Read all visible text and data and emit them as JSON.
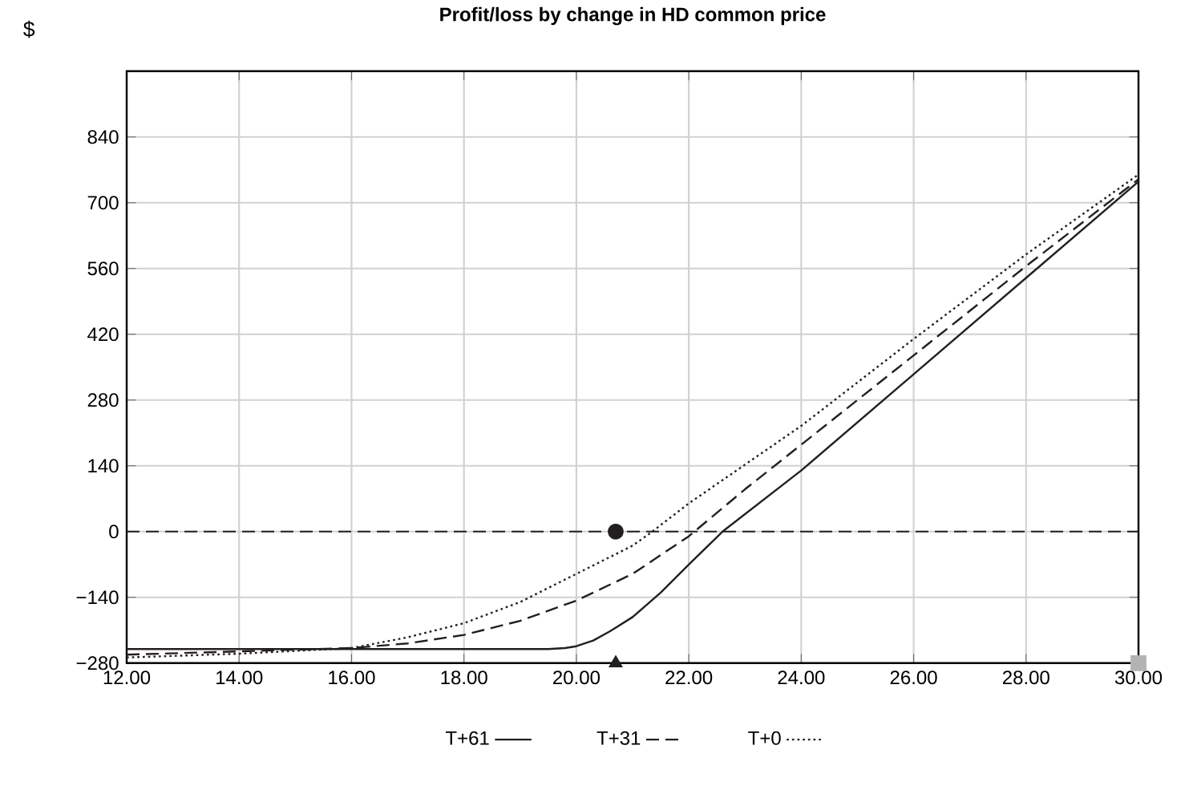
{
  "chart_data": {
    "type": "line",
    "title": "Profit/loss by change in HD common price",
    "ylabel": "$",
    "xlim": [
      12,
      30
    ],
    "ylim": [
      -280,
      980
    ],
    "xticks": [
      {
        "value": 12,
        "label": "12.00"
      },
      {
        "value": 14,
        "label": "14.00"
      },
      {
        "value": 16,
        "label": "16.00"
      },
      {
        "value": 18,
        "label": "18.00"
      },
      {
        "value": 20,
        "label": "20.00"
      },
      {
        "value": 22,
        "label": "22.00"
      },
      {
        "value": 24,
        "label": "24.00"
      },
      {
        "value": 26,
        "label": "26.00"
      },
      {
        "value": 28,
        "label": "28.00"
      },
      {
        "value": 30,
        "label": "30.00"
      }
    ],
    "yticks": [
      {
        "value": -280,
        "label": "−280"
      },
      {
        "value": -140,
        "label": "−140"
      },
      0,
      140,
      280,
      420,
      560,
      700,
      840,
      {
        "value": 980,
        "label": null
      }
    ],
    "grid": true,
    "legend": "bottom",
    "marker": "none",
    "ref_lines": [
      {
        "axis": "y",
        "value": 0,
        "color": "#231f20",
        "line_style": "dashed"
      }
    ],
    "series": [
      {
        "name": "T+61",
        "color": "#231f20",
        "line_style": "solid",
        "x": [
          12,
          14,
          16,
          18,
          19.5,
          19.8,
          20,
          20.3,
          20.6,
          21,
          21.5,
          22,
          22.6,
          24,
          26,
          28,
          30
        ],
        "values": [
          -250,
          -250,
          -250,
          -250,
          -250,
          -248,
          -244,
          -232,
          -212,
          -182,
          -130,
          -70,
          0,
          130,
          335,
          540,
          745
        ]
      },
      {
        "name": "T+31",
        "color": "#231f20",
        "line_style": "dashed",
        "x": [
          12,
          14,
          16,
          17,
          18,
          19,
          20,
          21,
          22,
          23,
          24,
          26,
          28,
          30
        ],
        "values": [
          -262,
          -255,
          -248,
          -238,
          -220,
          -190,
          -147,
          -90,
          -10,
          90,
          185,
          375,
          565,
          750
        ]
      },
      {
        "name": "T+0",
        "color": "#231f20",
        "line_style": "dotted",
        "x": [
          12,
          14,
          16,
          17,
          18,
          19,
          20,
          21,
          21.35,
          22,
          24,
          26,
          28,
          30
        ],
        "values": [
          -268,
          -260,
          -248,
          -225,
          -195,
          -150,
          -90,
          -30,
          0,
          60,
          225,
          410,
          590,
          760
        ]
      },
      {
        "type": "scatter",
        "marker": "circle",
        "color": "#231f20",
        "x": [
          20.7
        ],
        "values": [
          0
        ]
      },
      {
        "type": "scatter",
        "marker": "triangle",
        "color": "#231f20",
        "x": [
          20.7
        ],
        "values": [
          -280
        ]
      },
      {
        "type": "scatter",
        "marker": "square",
        "color": "#b3b3b3",
        "x": [
          30
        ],
        "values": [
          -280
        ]
      }
    ]
  }
}
